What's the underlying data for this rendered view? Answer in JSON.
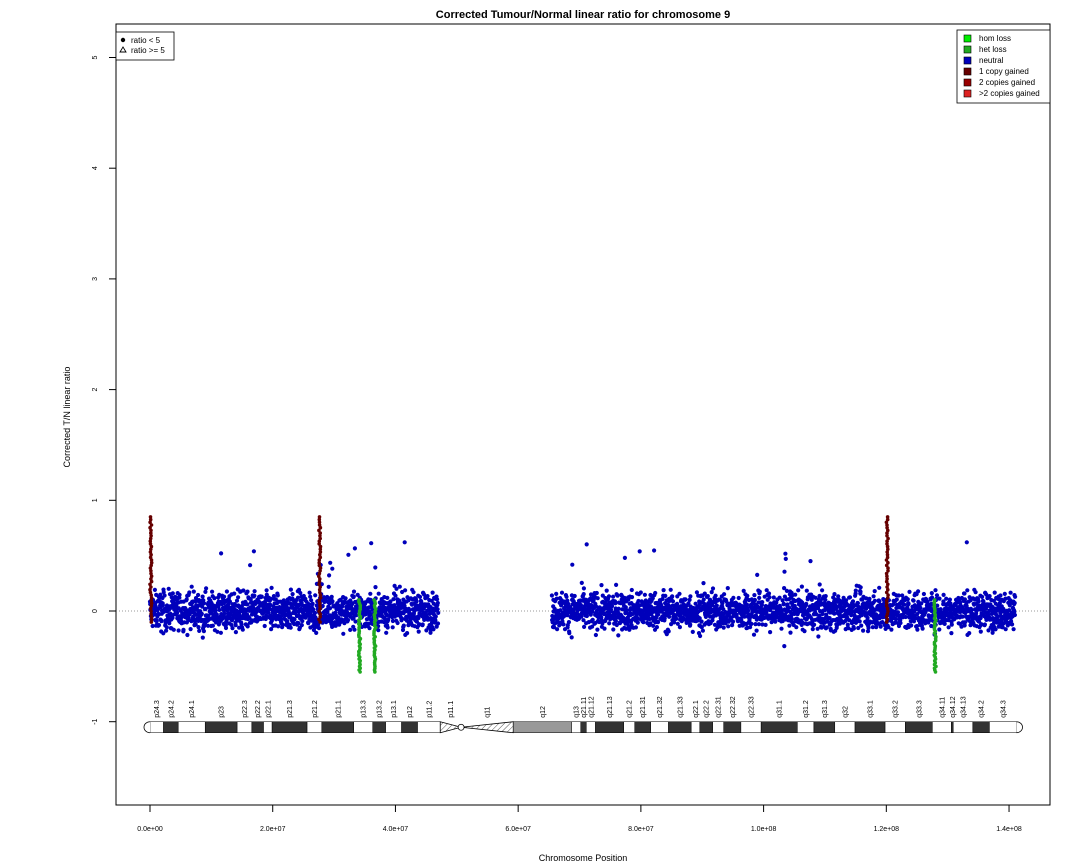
{
  "chart_data": {
    "type": "scatter",
    "title": "Corrected Tumour/Normal linear ratio for chromosome  9",
    "xlabel": "Chromosome Position",
    "ylabel": "Corrected T/N linear ratio",
    "xlim": [
      0,
      141213431
    ],
    "ylim": [
      -1.75,
      5.25
    ],
    "x_ticks": [
      0,
      20000000,
      40000000,
      60000000,
      80000000,
      100000000,
      120000000,
      140000000
    ],
    "x_tick_labels": [
      "0.0e+00",
      "2.0e+07",
      "4.0e+07",
      "6.0e+07",
      "8.0e+07",
      "1.0e+08",
      "1.2e+08",
      "1.4e+08"
    ],
    "y_ticks": [
      -1,
      0,
      1,
      2,
      3,
      4,
      5
    ],
    "y_tick_labels": [
      "-1",
      "0",
      "1",
      "2",
      "3",
      "4",
      "5"
    ],
    "reference_line": 0,
    "shape_legend": [
      "ratio < 5",
      "ratio >= 5"
    ],
    "status_legend": [
      {
        "label": "hom loss",
        "color": "#00ee00"
      },
      {
        "label": "het loss",
        "color": "#22aa22"
      },
      {
        "label": "neutral",
        "color": "#0000bb"
      },
      {
        "label": "1 copy gained",
        "color": "#660000"
      },
      {
        "label": "2 copies gained",
        "color": "#990000"
      },
      {
        "label": ">2 copies gained",
        "color": "#dd2222"
      }
    ],
    "legend_placement": [
      "top-left",
      "top-right"
    ],
    "series": [
      {
        "status": "neutral",
        "color": "#0000bb",
        "x_ranges": [
          [
            0,
            47000000
          ],
          [
            65500000,
            141000000
          ]
        ],
        "y_center": 0.0,
        "y_spread": 0.3
      },
      {
        "status": "het loss",
        "color": "#22aa22",
        "x": [
          34000000,
          36500000,
          127800000
        ],
        "y_range": [
          -0.55,
          0.1
        ]
      },
      {
        "status": "1 copy gained",
        "color": "#660000",
        "x": [
          0,
          27500000,
          120000000
        ],
        "y_range": [
          -0.1,
          0.85
        ]
      }
    ],
    "ideogram": {
      "y": -1.05,
      "bands": [
        {
          "name": "p24.3",
          "start": 0,
          "end": 2200000,
          "stain": "gneg"
        },
        {
          "name": "p24.2",
          "start": 2200000,
          "end": 4600000,
          "stain": "gpos"
        },
        {
          "name": "p24.1",
          "start": 4600000,
          "end": 9000000,
          "stain": "gneg"
        },
        {
          "name": "p23",
          "start": 9000000,
          "end": 14200000,
          "stain": "gpos"
        },
        {
          "name": "p22.3",
          "start": 14200000,
          "end": 16600000,
          "stain": "gneg"
        },
        {
          "name": "p22.2",
          "start": 16600000,
          "end": 18500000,
          "stain": "gpos"
        },
        {
          "name": "p22.1",
          "start": 18500000,
          "end": 19900000,
          "stain": "gneg"
        },
        {
          "name": "p21.3",
          "start": 19900000,
          "end": 25600000,
          "stain": "gpos"
        },
        {
          "name": "p21.2",
          "start": 25600000,
          "end": 28000000,
          "stain": "gneg"
        },
        {
          "name": "p21.1",
          "start": 28000000,
          "end": 33200000,
          "stain": "gpos"
        },
        {
          "name": "p13.3",
          "start": 33200000,
          "end": 36300000,
          "stain": "gneg"
        },
        {
          "name": "p13.2",
          "start": 36300000,
          "end": 38400000,
          "stain": "gpos"
        },
        {
          "name": "p13.1",
          "start": 38400000,
          "end": 41000000,
          "stain": "gneg"
        },
        {
          "name": "p12",
          "start": 41000000,
          "end": 43600000,
          "stain": "gpos"
        },
        {
          "name": "p11.2",
          "start": 43600000,
          "end": 47300000,
          "stain": "gneg"
        },
        {
          "name": "p11.1",
          "start": 47300000,
          "end": 50700000,
          "stain": "acen"
        },
        {
          "name": "q11",
          "start": 50700000,
          "end": 59200000,
          "stain": "acen"
        },
        {
          "name": "q12",
          "start": 59200000,
          "end": 68700000,
          "stain": "gvar"
        },
        {
          "name": "q13",
          "start": 68700000,
          "end": 70200000,
          "stain": "gneg"
        },
        {
          "name": "q21.11",
          "start": 70200000,
          "end": 71100000,
          "stain": "gpos"
        },
        {
          "name": "q21.12",
          "start": 71100000,
          "end": 72600000,
          "stain": "gneg"
        },
        {
          "name": "q21.13",
          "start": 72600000,
          "end": 77200000,
          "stain": "gpos"
        },
        {
          "name": "q21.2",
          "start": 77200000,
          "end": 79000000,
          "stain": "gneg"
        },
        {
          "name": "q21.31",
          "start": 79000000,
          "end": 81600000,
          "stain": "gpos"
        },
        {
          "name": "q21.32",
          "start": 81600000,
          "end": 84500000,
          "stain": "gneg"
        },
        {
          "name": "q21.33",
          "start": 84500000,
          "end": 88200000,
          "stain": "gpos"
        },
        {
          "name": "q22.1",
          "start": 88200000,
          "end": 89600000,
          "stain": "gneg"
        },
        {
          "name": "q22.2",
          "start": 89600000,
          "end": 91700000,
          "stain": "gpos"
        },
        {
          "name": "q22.31",
          "start": 91700000,
          "end": 93500000,
          "stain": "gneg"
        },
        {
          "name": "q22.32",
          "start": 93500000,
          "end": 96300000,
          "stain": "gpos"
        },
        {
          "name": "q22.33",
          "start": 96300000,
          "end": 99600000,
          "stain": "gneg"
        },
        {
          "name": "q31.1",
          "start": 99600000,
          "end": 105500000,
          "stain": "gpos"
        },
        {
          "name": "q31.2",
          "start": 105500000,
          "end": 108200000,
          "stain": "gneg"
        },
        {
          "name": "q31.3",
          "start": 108200000,
          "end": 111600000,
          "stain": "gpos"
        },
        {
          "name": "q32",
          "start": 111600000,
          "end": 114900000,
          "stain": "gneg"
        },
        {
          "name": "q33.1",
          "start": 114900000,
          "end": 119800000,
          "stain": "gpos"
        },
        {
          "name": "q33.2",
          "start": 119800000,
          "end": 123100000,
          "stain": "gneg"
        },
        {
          "name": "q33.3",
          "start": 123100000,
          "end": 127500000,
          "stain": "gpos"
        },
        {
          "name": "q34.11",
          "start": 127500000,
          "end": 130600000,
          "stain": "gneg"
        },
        {
          "name": "q34.12",
          "start": 130600000,
          "end": 130900000,
          "stain": "gpos"
        },
        {
          "name": "q34.13",
          "start": 130900000,
          "end": 134100000,
          "stain": "gneg"
        },
        {
          "name": "q34.2",
          "start": 134100000,
          "end": 136800000,
          "stain": "gpos"
        },
        {
          "name": "q34.3",
          "start": 136800000,
          "end": 141213431,
          "stain": "gneg"
        }
      ]
    }
  }
}
